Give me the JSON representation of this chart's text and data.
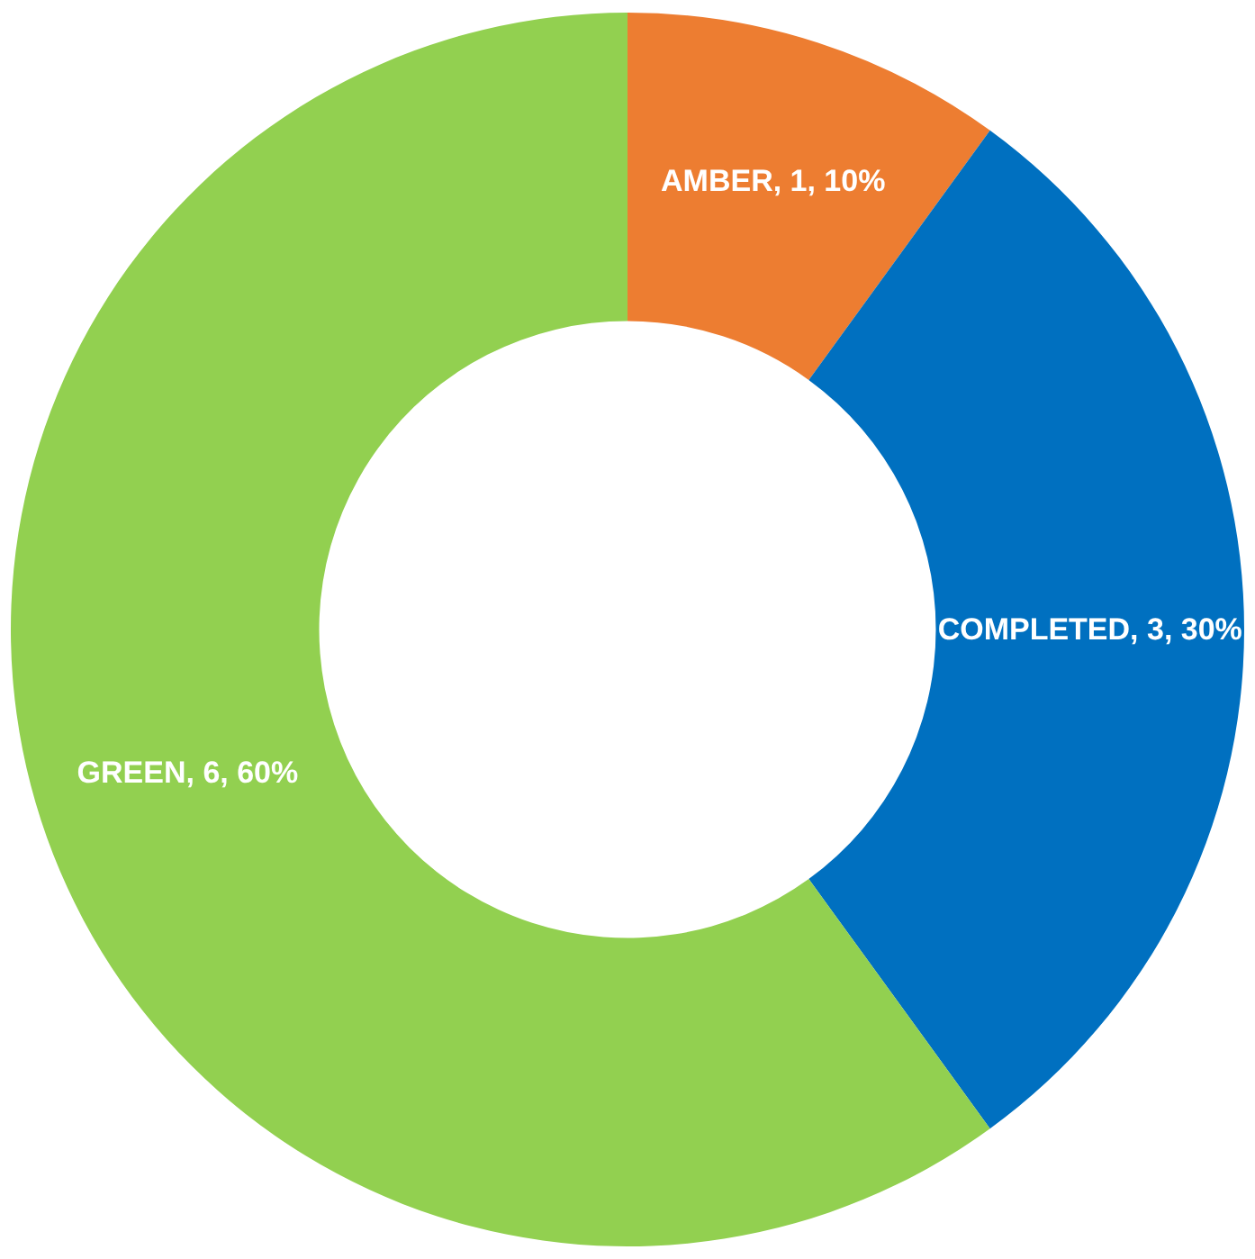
{
  "chart_data": {
    "type": "donut",
    "categories": [
      "AMBER, 1, 10%",
      "COMPLETED, 3, 30%",
      "GREEN, 6, 60%"
    ],
    "values": [
      1,
      3,
      6
    ],
    "colors": [
      "#ed7d31",
      "#0070c0",
      "#92d050"
    ],
    "legend": false
  }
}
